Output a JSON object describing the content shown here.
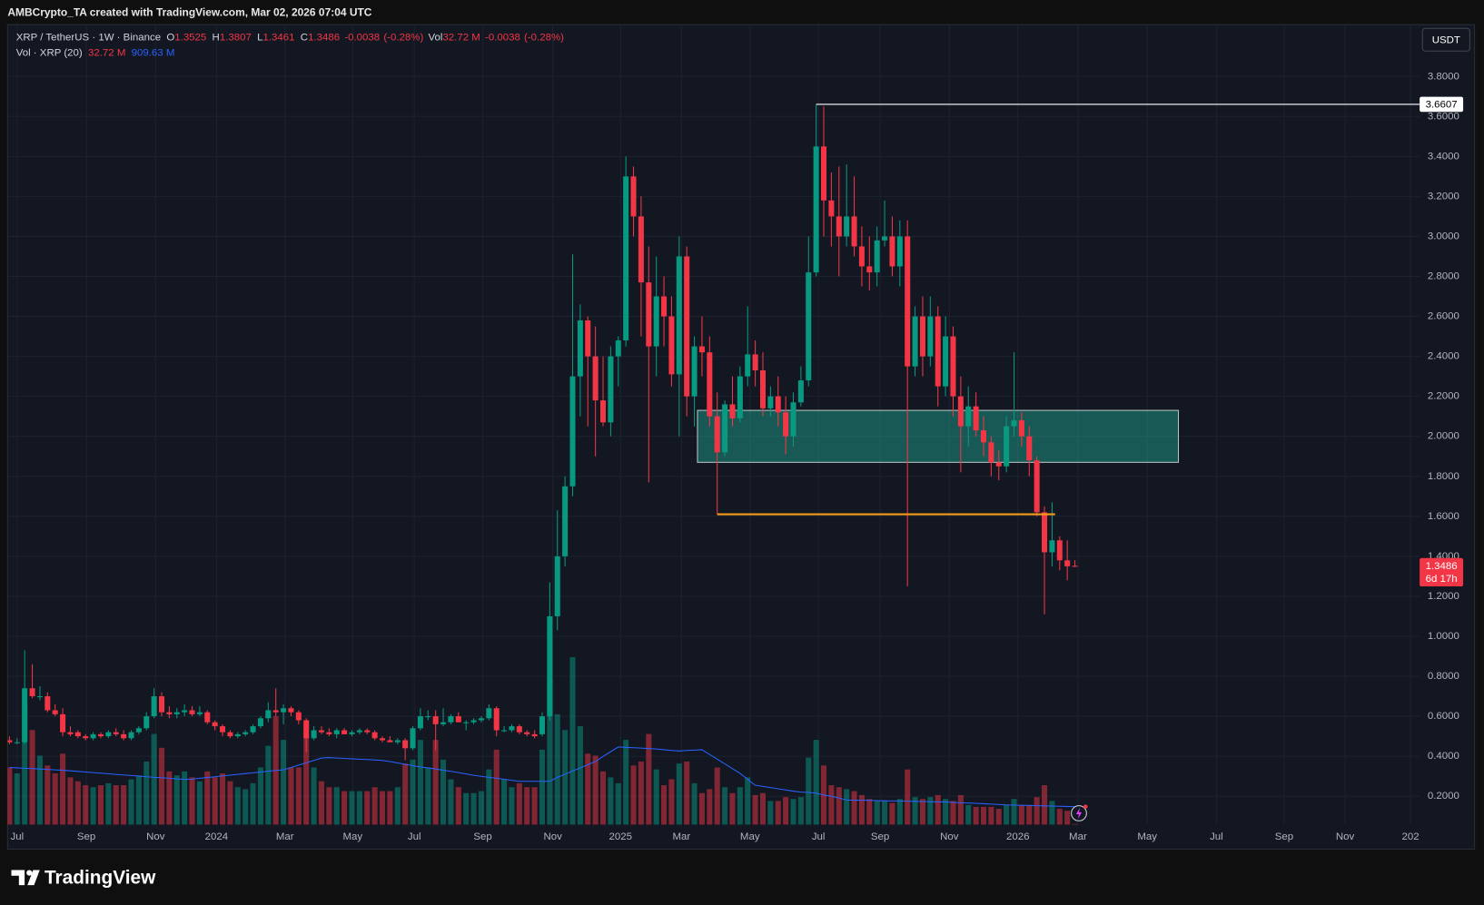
{
  "chart_data": {
    "type": "candlestick",
    "attribution": "AMBCrypto_TA created with TradingView.com, Mar 02, 2026 07:04 UTC",
    "currency": "USDT",
    "brand": "TradingView",
    "legend": {
      "symbol": "XRP / TetherUS · 1W · Binance",
      "items": [
        {
          "key": "O",
          "value": 1.3525
        },
        {
          "key": "H",
          "value": 1.3807
        },
        {
          "key": "L",
          "value": 1.3461
        },
        {
          "key": "C",
          "value": 1.3486
        }
      ],
      "change": -0.0038,
      "change_pct": {
        "value": -0.28,
        "label": "(-0.28%)"
      },
      "vol_key": "Vol",
      "vol": {
        "value": 32.72,
        "label": "32.72 M"
      },
      "vol_change": -0.0038,
      "vol_change_pct": {
        "value": -0.28,
        "label": "(-0.28%)"
      }
    },
    "volume_legend": {
      "title": "Vol · XRP (20)",
      "volume": {
        "value": 32.72,
        "label": "32.72 M"
      },
      "ma": {
        "value": 909.63,
        "label": "909.63 M"
      }
    },
    "countdown": "6d 17h",
    "up_color": "#089981",
    "down_color": "#f23645",
    "ma_color": "#2962ff",
    "grid": true,
    "xlim": [
      0,
      185.3
    ],
    "ylim": [
      0.058,
      4.05
    ],
    "volume_ylim": [
      0,
      40500
    ],
    "xticks": [
      {
        "value": 1.0,
        "label": "Jul"
      },
      {
        "value": 10.1,
        "label": "Sep"
      },
      {
        "value": 19.2,
        "label": "Nov"
      },
      {
        "value": 27.2,
        "label": "2024"
      },
      {
        "value": 36.2,
        "label": "Mar"
      },
      {
        "value": 45.1,
        "label": "May"
      },
      {
        "value": 53.2,
        "label": "Jul"
      },
      {
        "value": 62.2,
        "label": "Sep"
      },
      {
        "value": 71.4,
        "label": "Nov"
      },
      {
        "value": 80.3,
        "label": "2025"
      },
      {
        "value": 88.3,
        "label": "Mar"
      },
      {
        "value": 97.3,
        "label": "May"
      },
      {
        "value": 106.3,
        "label": "Jul"
      },
      {
        "value": 114.4,
        "label": "Sep"
      },
      {
        "value": 123.5,
        "label": "Nov"
      },
      {
        "value": 132.5,
        "label": "2026"
      },
      {
        "value": 140.4,
        "label": "Mar"
      },
      {
        "value": 149.5,
        "label": "May"
      },
      {
        "value": 158.6,
        "label": "Jul"
      },
      {
        "value": 167.5,
        "label": "Sep"
      },
      {
        "value": 175.5,
        "label": "Nov"
      },
      {
        "value": 184.1,
        "label": "202"
      }
    ],
    "yticks": [
      {
        "value": 0.2,
        "label": "0.2000"
      },
      {
        "value": 0.4,
        "label": "0.4000"
      },
      {
        "value": 0.6,
        "label": "0.6000"
      },
      {
        "value": 0.8,
        "label": "0.8000"
      },
      {
        "value": 1.0,
        "label": "1.0000"
      },
      {
        "value": 1.2,
        "label": "1.2000"
      },
      {
        "value": 1.4,
        "label": "1.4000"
      },
      {
        "value": 1.6,
        "label": "1.6000"
      },
      {
        "value": 1.8,
        "label": "1.8000"
      },
      {
        "value": 2.0,
        "label": "2.0000"
      },
      {
        "value": 2.2,
        "label": "2.2000"
      },
      {
        "value": 2.4,
        "label": "2.4000"
      },
      {
        "value": 2.6,
        "label": "2.6000"
      },
      {
        "value": 2.8,
        "label": "2.8000"
      },
      {
        "value": 3.0,
        "label": "3.0000"
      },
      {
        "value": 3.2,
        "label": "3.2000"
      },
      {
        "value": 3.4,
        "label": "3.4000"
      },
      {
        "value": 3.6,
        "label": "3.6000"
      },
      {
        "value": 3.8,
        "label": "3.8000"
      }
    ],
    "zone": {
      "top": 2.13,
      "bottom": 1.87,
      "from": 90.4,
      "to": 153.6,
      "color": "#22ab94"
    },
    "support_line": {
      "value": 1.61,
      "from": 93,
      "to": 137.4,
      "color": "#f59c1a"
    },
    "high_line": {
      "value": 3.6607,
      "from": 106,
      "color": "#ffffff"
    },
    "candles": [
      [
        0.48,
        0.5,
        0.46,
        0.47
      ],
      [
        0.47,
        0.49,
        0.46,
        0.47
      ],
      [
        0.47,
        0.93,
        0.46,
        0.74
      ],
      [
        0.74,
        0.86,
        0.69,
        0.7
      ],
      [
        0.7,
        0.75,
        0.68,
        0.7
      ],
      [
        0.7,
        0.72,
        0.62,
        0.63
      ],
      [
        0.63,
        0.66,
        0.6,
        0.61
      ],
      [
        0.61,
        0.64,
        0.5,
        0.52
      ],
      [
        0.52,
        0.55,
        0.5,
        0.51
      ],
      [
        0.52,
        0.53,
        0.49,
        0.5
      ],
      [
        0.5,
        0.51,
        0.48,
        0.49
      ],
      [
        0.49,
        0.52,
        0.48,
        0.51
      ],
      [
        0.51,
        0.52,
        0.49,
        0.5
      ],
      [
        0.5,
        0.53,
        0.49,
        0.52
      ],
      [
        0.52,
        0.54,
        0.5,
        0.51
      ],
      [
        0.51,
        0.53,
        0.48,
        0.49
      ],
      [
        0.49,
        0.53,
        0.48,
        0.52
      ],
      [
        0.52,
        0.55,
        0.51,
        0.54
      ],
      [
        0.54,
        0.62,
        0.53,
        0.6
      ],
      [
        0.6,
        0.74,
        0.59,
        0.7
      ],
      [
        0.7,
        0.72,
        0.6,
        0.62
      ],
      [
        0.62,
        0.65,
        0.59,
        0.61
      ],
      [
        0.61,
        0.64,
        0.59,
        0.62
      ],
      [
        0.62,
        0.66,
        0.6,
        0.63
      ],
      [
        0.63,
        0.65,
        0.6,
        0.61
      ],
      [
        0.61,
        0.65,
        0.6,
        0.62
      ],
      [
        0.62,
        0.63,
        0.56,
        0.57
      ],
      [
        0.57,
        0.58,
        0.53,
        0.55
      ],
      [
        0.55,
        0.56,
        0.5,
        0.52
      ],
      [
        0.52,
        0.53,
        0.49,
        0.5
      ],
      [
        0.5,
        0.52,
        0.49,
        0.51
      ],
      [
        0.51,
        0.53,
        0.5,
        0.52
      ],
      [
        0.52,
        0.56,
        0.51,
        0.55
      ],
      [
        0.55,
        0.6,
        0.54,
        0.59
      ],
      [
        0.59,
        0.67,
        0.57,
        0.63
      ],
      [
        0.63,
        0.74,
        0.6,
        0.62
      ],
      [
        0.62,
        0.66,
        0.56,
        0.64
      ],
      [
        0.64,
        0.65,
        0.6,
        0.62
      ],
      [
        0.62,
        0.63,
        0.56,
        0.58
      ],
      [
        0.58,
        0.59,
        0.42,
        0.49
      ],
      [
        0.49,
        0.55,
        0.48,
        0.53
      ],
      [
        0.53,
        0.55,
        0.51,
        0.52
      ],
      [
        0.52,
        0.54,
        0.5,
        0.51
      ],
      [
        0.51,
        0.54,
        0.49,
        0.53
      ],
      [
        0.53,
        0.54,
        0.51,
        0.51
      ],
      [
        0.51,
        0.53,
        0.5,
        0.52
      ],
      [
        0.52,
        0.54,
        0.51,
        0.53
      ],
      [
        0.53,
        0.54,
        0.51,
        0.52
      ],
      [
        0.52,
        0.53,
        0.48,
        0.49
      ],
      [
        0.49,
        0.5,
        0.47,
        0.48
      ],
      [
        0.48,
        0.5,
        0.47,
        0.47
      ],
      [
        0.47,
        0.49,
        0.46,
        0.48
      ],
      [
        0.48,
        0.49,
        0.38,
        0.44
      ],
      [
        0.44,
        0.55,
        0.43,
        0.54
      ],
      [
        0.54,
        0.64,
        0.53,
        0.6
      ],
      [
        0.6,
        0.63,
        0.58,
        0.6
      ],
      [
        0.6,
        0.63,
        0.43,
        0.56
      ],
      [
        0.56,
        0.64,
        0.55,
        0.57
      ],
      [
        0.57,
        0.61,
        0.56,
        0.6
      ],
      [
        0.6,
        0.62,
        0.57,
        0.57
      ],
      [
        0.57,
        0.58,
        0.53,
        0.57
      ],
      [
        0.57,
        0.59,
        0.56,
        0.58
      ],
      [
        0.58,
        0.6,
        0.57,
        0.59
      ],
      [
        0.59,
        0.66,
        0.58,
        0.64
      ],
      [
        0.64,
        0.65,
        0.5,
        0.53
      ],
      [
        0.53,
        0.55,
        0.52,
        0.53
      ],
      [
        0.53,
        0.56,
        0.52,
        0.55
      ],
      [
        0.55,
        0.56,
        0.51,
        0.52
      ],
      [
        0.52,
        0.53,
        0.5,
        0.51
      ],
      [
        0.51,
        0.53,
        0.49,
        0.5
      ],
      [
        0.51,
        0.62,
        0.5,
        0.6
      ],
      [
        0.6,
        1.27,
        0.58,
        1.1
      ],
      [
        1.1,
        1.63,
        1.03,
        1.4
      ],
      [
        1.4,
        1.8,
        1.35,
        1.75
      ],
      [
        1.75,
        2.91,
        1.7,
        2.3
      ],
      [
        2.3,
        2.66,
        2.1,
        2.58
      ],
      [
        2.58,
        2.6,
        2.05,
        2.4
      ],
      [
        2.4,
        2.55,
        1.9,
        2.18
      ],
      [
        2.18,
        2.4,
        2.05,
        2.07
      ],
      [
        2.07,
        2.45,
        2.0,
        2.4
      ],
      [
        2.4,
        2.5,
        2.25,
        2.48
      ],
      [
        2.48,
        3.4,
        2.45,
        3.3
      ],
      [
        3.3,
        3.35,
        3.0,
        3.1
      ],
      [
        3.1,
        3.2,
        2.5,
        2.77
      ],
      [
        2.77,
        2.95,
        1.77,
        2.45
      ],
      [
        2.45,
        2.9,
        2.3,
        2.7
      ],
      [
        2.7,
        2.8,
        2.45,
        2.6
      ],
      [
        2.6,
        2.7,
        2.25,
        2.31
      ],
      [
        2.31,
        3.0,
        2.0,
        2.9
      ],
      [
        2.9,
        2.95,
        2.1,
        2.2
      ],
      [
        2.2,
        2.5,
        2.05,
        2.45
      ],
      [
        2.45,
        2.6,
        2.3,
        2.42
      ],
      [
        2.42,
        2.5,
        2.05,
        2.1
      ],
      [
        2.1,
        2.22,
        1.61,
        1.92
      ],
      [
        1.92,
        2.18,
        1.9,
        2.16
      ],
      [
        2.16,
        2.3,
        2.05,
        2.09
      ],
      [
        2.09,
        2.35,
        2.07,
        2.3
      ],
      [
        2.3,
        2.65,
        2.25,
        2.41
      ],
      [
        2.41,
        2.48,
        2.25,
        2.33
      ],
      [
        2.33,
        2.42,
        2.1,
        2.14
      ],
      [
        2.14,
        2.25,
        2.1,
        2.2
      ],
      [
        2.2,
        2.3,
        2.05,
        2.12
      ],
      [
        2.12,
        2.2,
        1.91,
        2.0
      ],
      [
        2.0,
        2.22,
        1.95,
        2.17
      ],
      [
        2.17,
        2.35,
        2.15,
        2.28
      ],
      [
        2.28,
        3.0,
        2.25,
        2.82
      ],
      [
        2.82,
        3.66,
        2.8,
        3.45
      ],
      [
        3.45,
        3.65,
        3.0,
        3.18
      ],
      [
        3.18,
        3.32,
        2.95,
        3.1
      ],
      [
        3.1,
        3.35,
        2.8,
        3.0
      ],
      [
        3.0,
        3.36,
        2.95,
        3.1
      ],
      [
        3.1,
        3.3,
        2.9,
        2.95
      ],
      [
        2.95,
        3.05,
        2.75,
        2.85
      ],
      [
        2.85,
        3.0,
        2.73,
        2.82
      ],
      [
        2.82,
        3.05,
        2.75,
        2.98
      ],
      [
        2.98,
        3.18,
        2.95,
        3.0
      ],
      [
        3.0,
        3.1,
        2.8,
        2.85
      ],
      [
        2.85,
        3.08,
        2.75,
        3.0
      ],
      [
        3.0,
        3.08,
        1.25,
        2.35
      ],
      [
        2.35,
        2.65,
        2.3,
        2.6
      ],
      [
        2.6,
        2.7,
        2.3,
        2.4
      ],
      [
        2.4,
        2.7,
        2.35,
        2.6
      ],
      [
        2.6,
        2.65,
        2.15,
        2.25
      ],
      [
        2.25,
        2.6,
        2.2,
        2.5
      ],
      [
        2.5,
        2.55,
        2.1,
        2.2
      ],
      [
        2.2,
        2.3,
        1.82,
        2.05
      ],
      [
        2.05,
        2.25,
        1.95,
        2.15
      ],
      [
        2.15,
        2.22,
        2.0,
        2.03
      ],
      [
        2.03,
        2.1,
        1.9,
        1.97
      ],
      [
        1.97,
        2.0,
        1.8,
        1.87
      ],
      [
        1.87,
        1.93,
        1.78,
        1.85
      ],
      [
        1.85,
        2.1,
        1.82,
        2.05
      ],
      [
        2.05,
        2.42,
        2.0,
        2.08
      ],
      [
        2.08,
        2.12,
        1.95,
        2.0
      ],
      [
        2.0,
        2.05,
        1.8,
        1.88
      ],
      [
        1.88,
        1.9,
        1.6,
        1.62
      ],
      [
        1.62,
        1.65,
        1.11,
        1.42
      ],
      [
        1.42,
        1.67,
        1.35,
        1.48
      ],
      [
        1.48,
        1.5,
        1.33,
        1.38
      ],
      [
        1.38,
        1.48,
        1.28,
        1.35
      ],
      [
        1.3525,
        1.3807,
        1.3461,
        1.3486
      ]
    ],
    "volumes": [
      2900,
      2600,
      6000,
      4800,
      3500,
      3000,
      2600,
      3600,
      2400,
      2200,
      2000,
      1900,
      2000,
      2100,
      2000,
      2000,
      2300,
      2500,
      3200,
      4600,
      3900,
      2700,
      2500,
      2700,
      2400,
      2200,
      2700,
      2400,
      2600,
      2200,
      1900,
      1800,
      2100,
      2900,
      4000,
      5500,
      4300,
      2900,
      2900,
      4600,
      2900,
      2200,
      1900,
      1900,
      1700,
      1700,
      1700,
      1700,
      1900,
      1700,
      1700,
      1900,
      3100,
      3300,
      4300,
      2900,
      4300,
      3300,
      2300,
      1900,
      1600,
      1600,
      1700,
      2800,
      3800,
      2300,
      1900,
      2100,
      1900,
      1900,
      3800,
      7400,
      5600,
      4800,
      8500,
      5000,
      3600,
      3500,
      2700,
      2400,
      2100,
      4300,
      3000,
      3200,
      4600,
      2800,
      2000,
      2300,
      3100,
      3200,
      2100,
      1600,
      1800,
      2900,
      1900,
      1600,
      1900,
      2400,
      1500,
      1600,
      1200,
      1200,
      1400,
      1300,
      1400,
      3400,
      4300,
      3000,
      2000,
      1900,
      1800,
      1700,
      1500,
      1300,
      1200,
      1200,
      1100,
      1300,
      2800,
      1400,
      1300,
      1400,
      1500,
      1300,
      1200,
      1500,
      1000,
      900,
      900,
      900,
      800,
      1000,
      1300,
      1000,
      1000,
      1400,
      2000,
      1200,
      800,
      700,
      32.72
    ],
    "volume_ma": [
      2900,
      2880,
      2860,
      2840,
      2820,
      2800,
      2780,
      2760,
      2730,
      2700,
      2670,
      2640,
      2610,
      2580,
      2550,
      2520,
      2490,
      2460,
      2430,
      2400,
      2380,
      2350,
      2320,
      2300,
      2310,
      2350,
      2390,
      2430,
      2470,
      2510,
      2550,
      2590,
      2630,
      2670,
      2710,
      2750,
      2780,
      2900,
      3020,
      3140,
      3260,
      3380,
      3400,
      3380,
      3360,
      3340,
      3320,
      3300,
      3280,
      3260,
      3200,
      3130,
      3060,
      2990,
      2920,
      2880,
      2820,
      2760,
      2700,
      2640,
      2570,
      2500,
      2450,
      2400,
      2350,
      2300,
      2250,
      2200,
      2200,
      2200,
      2200,
      2200,
      2400,
      2560,
      2720,
      2880,
      3040,
      3200,
      3460,
      3700,
      3940,
      3920,
      3900,
      3880,
      3860,
      3840,
      3800,
      3760,
      3740,
      3760,
      3780,
      3800,
      3560,
      3320,
      3080,
      2840,
      2600,
      2300,
      2000,
      1940,
      1880,
      1820,
      1760,
      1700,
      1650,
      1630,
      1600,
      1500,
      1440,
      1350,
      1250,
      1240,
      1240,
      1230,
      1220,
      1210,
      1200,
      1200,
      1190,
      1180,
      1170,
      1160,
      1150,
      1150,
      1130,
      1110,
      1100,
      1080,
      1060,
      1040,
      1020,
      1000,
      990,
      980,
      970,
      960,
      950,
      940,
      930,
      920,
      909.63
    ]
  }
}
